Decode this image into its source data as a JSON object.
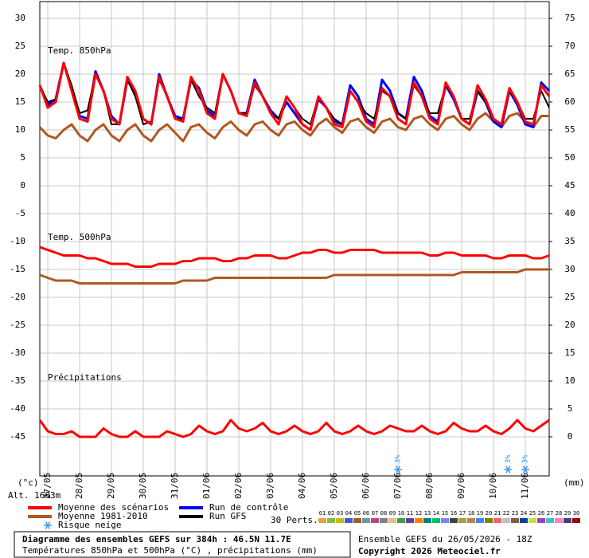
{
  "chart_data": {
    "type": "line",
    "panel_labels": [
      "Temp. 850hPa",
      "Temp. 500hPa",
      "Précipitations"
    ],
    "y_unit": "(°c)",
    "y2_unit": "(mm)",
    "altitude": "Alt. 1683m",
    "xlim": [
      0,
      384
    ],
    "xticks": [
      {
        "value": 6,
        "label": "27/05"
      },
      {
        "value": 30,
        "label": "28/05"
      },
      {
        "value": 54,
        "label": "29/05"
      },
      {
        "value": 78,
        "label": "30/05"
      },
      {
        "value": 102,
        "label": "31/05"
      },
      {
        "value": 126,
        "label": "01/06"
      },
      {
        "value": 150,
        "label": "02/06"
      },
      {
        "value": 174,
        "label": "03/06"
      },
      {
        "value": 198,
        "label": "04/06"
      },
      {
        "value": 222,
        "label": "05/06"
      },
      {
        "value": 246,
        "label": "06/06"
      },
      {
        "value": 270,
        "label": "07/06"
      },
      {
        "value": 294,
        "label": "08/06"
      },
      {
        "value": 318,
        "label": "09/06"
      },
      {
        "value": 342,
        "label": "10/06"
      },
      {
        "value": 366,
        "label": "11/06"
      }
    ],
    "ylim": [
      -52,
      33
    ],
    "yticks": [
      -45,
      -40,
      -35,
      -30,
      -25,
      -20,
      -15,
      -10,
      -5,
      0,
      5,
      10,
      15,
      20,
      25,
      30
    ],
    "y2lim": [
      -7,
      78
    ],
    "y2ticks": [
      0,
      5,
      10,
      15,
      20,
      25,
      30,
      35,
      40,
      45,
      50,
      55,
      60,
      65,
      70,
      75
    ],
    "grid": true,
    "x": [
      0,
      6,
      12,
      18,
      24,
      30,
      36,
      42,
      48,
      54,
      60,
      66,
      72,
      78,
      84,
      90,
      96,
      102,
      108,
      114,
      120,
      126,
      132,
      138,
      144,
      150,
      156,
      162,
      168,
      174,
      180,
      186,
      192,
      198,
      204,
      210,
      216,
      222,
      228,
      234,
      240,
      246,
      252,
      258,
      264,
      270,
      276,
      282,
      288,
      294,
      300,
      306,
      312,
      318,
      324,
      330,
      336,
      342,
      348,
      354,
      360,
      366,
      372,
      378,
      384
    ],
    "series": [
      {
        "name": "Moyenne des scénarios",
        "color": "#ff0000",
        "values": [
          18,
          14,
          15,
          22,
          17,
          12,
          11.5,
          20,
          17,
          12,
          11,
          19.5,
          17,
          12,
          11,
          19.5,
          16,
          12,
          11.5,
          19.5,
          17,
          13,
          12,
          20,
          17,
          13,
          12.5,
          18.5,
          16,
          13,
          11,
          16,
          14,
          11,
          10,
          16,
          14,
          11,
          10.5,
          17,
          15,
          11.5,
          10.5,
          17.5,
          16,
          12,
          11,
          18.5,
          16,
          12,
          11,
          18.5,
          16,
          12,
          11,
          18,
          15.5,
          12,
          11,
          17.5,
          15,
          11.5,
          11,
          18,
          16
        ]
      },
      {
        "name": "Moyenne 1981-2010",
        "color": "#b0581e",
        "values": [
          10.5,
          9,
          8.5,
          10,
          11,
          9,
          8,
          10,
          11,
          9,
          8,
          10,
          11,
          9,
          8,
          10,
          11,
          9.5,
          8,
          10.5,
          11,
          9.5,
          8.5,
          10.5,
          11.5,
          10,
          9,
          11,
          11.5,
          10,
          9,
          11,
          11.5,
          10,
          9,
          11,
          12,
          10.5,
          9.5,
          11.5,
          12,
          10.5,
          9.5,
          11.5,
          12,
          10.5,
          10,
          12,
          12.5,
          11,
          10,
          12,
          12.5,
          11,
          10,
          12,
          13,
          11.5,
          10.5,
          12.5,
          13,
          11.5,
          10.5,
          12.5,
          12.5
        ]
      },
      {
        "name": "Run de contrôle",
        "color": "#0000ff",
        "values": [
          18,
          14.5,
          15.5,
          22,
          17.5,
          12.5,
          12,
          20.5,
          17,
          12.5,
          11,
          19,
          16.5,
          12,
          11,
          20,
          16,
          12.5,
          12,
          19,
          17.5,
          13.5,
          12.5,
          20,
          17,
          13,
          13,
          19,
          16,
          13.5,
          12,
          15,
          13,
          11,
          10,
          15.5,
          14,
          11.5,
          11,
          18,
          16,
          12,
          11,
          19,
          17,
          13,
          12,
          19.5,
          17,
          12.5,
          11.5,
          18,
          15.5,
          12,
          11,
          17,
          15,
          11.5,
          10.5,
          17,
          14.5,
          11,
          10.5,
          18.5,
          17
        ]
      },
      {
        "name": "Run GFS",
        "color": "#000000",
        "values": [
          18,
          15,
          15.5,
          22,
          18,
          13,
          13.5,
          20,
          17,
          11,
          11,
          19,
          16,
          11,
          11.5,
          19,
          16,
          12,
          12,
          19,
          16,
          14,
          13,
          20,
          17,
          13,
          13,
          18,
          16,
          13,
          12,
          16,
          14,
          12,
          11,
          16,
          14,
          12,
          11,
          17,
          15,
          13,
          12,
          17,
          16,
          13,
          12,
          18,
          16,
          13,
          13,
          18,
          16,
          12,
          12,
          17,
          15,
          12,
          11,
          17,
          15,
          12,
          12,
          17,
          14
        ]
      },
      {
        "name": "Moyenne des scénarios",
        "color": "#ff0000",
        "values": [
          -11,
          -11.5,
          -12,
          -12.5,
          -12.5,
          -12.5,
          -13,
          -13,
          -13.5,
          -14,
          -14,
          -14,
          -14.5,
          -14.5,
          -14.5,
          -14,
          -14,
          -14,
          -13.5,
          -13.5,
          -13,
          -13,
          -13,
          -13.5,
          -13.5,
          -13,
          -13,
          -12.5,
          -12.5,
          -12.5,
          -13,
          -13,
          -12.5,
          -12,
          -12,
          -11.5,
          -11.5,
          -12,
          -12,
          -11.5,
          -11.5,
          -11.5,
          -11.5,
          -12,
          -12,
          -12,
          -12,
          -12,
          -12,
          -12.5,
          -12.5,
          -12,
          -12,
          -12.5,
          -12.5,
          -12.5,
          -12.5,
          -13,
          -13,
          -12.5,
          -12.5,
          -12.5,
          -13,
          -13,
          -12.5
        ]
      },
      {
        "name": "Moyenne 1981-2010",
        "color": "#b0581e",
        "values": [
          -16,
          -16.5,
          -17,
          -17,
          -17,
          -17.5,
          -17.5,
          -17.5,
          -17.5,
          -17.5,
          -17.5,
          -17.5,
          -17.5,
          -17.5,
          -17.5,
          -17.5,
          -17.5,
          -17.5,
          -17,
          -17,
          -17,
          -17,
          -16.5,
          -16.5,
          -16.5,
          -16.5,
          -16.5,
          -16.5,
          -16.5,
          -16.5,
          -16.5,
          -16.5,
          -16.5,
          -16.5,
          -16.5,
          -16.5,
          -16.5,
          -16,
          -16,
          -16,
          -16,
          -16,
          -16,
          -16,
          -16,
          -16,
          -16,
          -16,
          -16,
          -16,
          -16,
          -16,
          -16,
          -15.5,
          -15.5,
          -15.5,
          -15.5,
          -15.5,
          -15.5,
          -15.5,
          -15.5,
          -15,
          -15,
          -15,
          -15
        ]
      },
      {
        "name": "Moyenne des scénarios",
        "color": "#ff0000",
        "axis": "y2",
        "values": [
          3,
          1,
          0.5,
          0.5,
          1,
          0,
          0,
          0,
          1.5,
          0.5,
          0,
          0,
          1,
          0,
          0,
          0,
          1,
          0.5,
          0,
          0.5,
          2,
          1,
          0.5,
          1,
          3,
          1.5,
          1,
          1.5,
          2.5,
          1,
          0.5,
          1,
          2,
          1,
          0.5,
          1,
          2.5,
          1,
          0.5,
          1,
          2,
          1,
          0.5,
          1,
          2,
          1.5,
          1,
          1,
          2,
          1,
          0.5,
          1,
          2.5,
          1.5,
          1,
          1,
          2,
          1,
          0.5,
          1.5,
          3,
          1.5,
          1,
          2,
          3
        ]
      }
    ],
    "snow_risk": {
      "label": "Risque neige",
      "color": "#3399ff",
      "markers": [
        {
          "x": 270,
          "label": "3%"
        },
        {
          "x": 353,
          "label": "3%"
        },
        {
          "x": 366,
          "label": "3%"
        }
      ]
    },
    "perturbations": {
      "label": "30 Perts.",
      "codes": [
        "01",
        "02",
        "03",
        "04",
        "05",
        "06",
        "07",
        "08",
        "09",
        "10",
        "11",
        "12",
        "13",
        "14",
        "15",
        "16",
        "17",
        "18",
        "19",
        "20",
        "21",
        "22",
        "23",
        "24",
        "25",
        "26",
        "27",
        "28",
        "29",
        "30"
      ],
      "colors": [
        "#e8a040",
        "#80c040",
        "#c0c000",
        "#4060c0",
        "#a06020",
        "#60a0a0",
        "#c04080",
        "#808080",
        "#e0c080",
        "#40a040",
        "#6040a0",
        "#ff8000",
        "#008080",
        "#00c060",
        "#8080ff",
        "#404040",
        "#a0a040",
        "#c08040",
        "#4080ff",
        "#808000",
        "#ff6060",
        "#c0c0c0",
        "#806040",
        "#0040a0",
        "#c0e040",
        "#a040c0",
        "#40c0c0",
        "#ff80c0",
        "#404080",
        "#a00000"
      ]
    }
  },
  "footer": {
    "title": "Diagramme des ensembles GEFS sur 384h : 46.5N 11.7E",
    "subtitle": "Températures 850hPa et 500hPa (°C) , précipitations (mm)",
    "run": "Ensemble GEFS du 26/05/2026 - 18Z",
    "copyright": "Copyright 2026 Meteociel.fr"
  }
}
